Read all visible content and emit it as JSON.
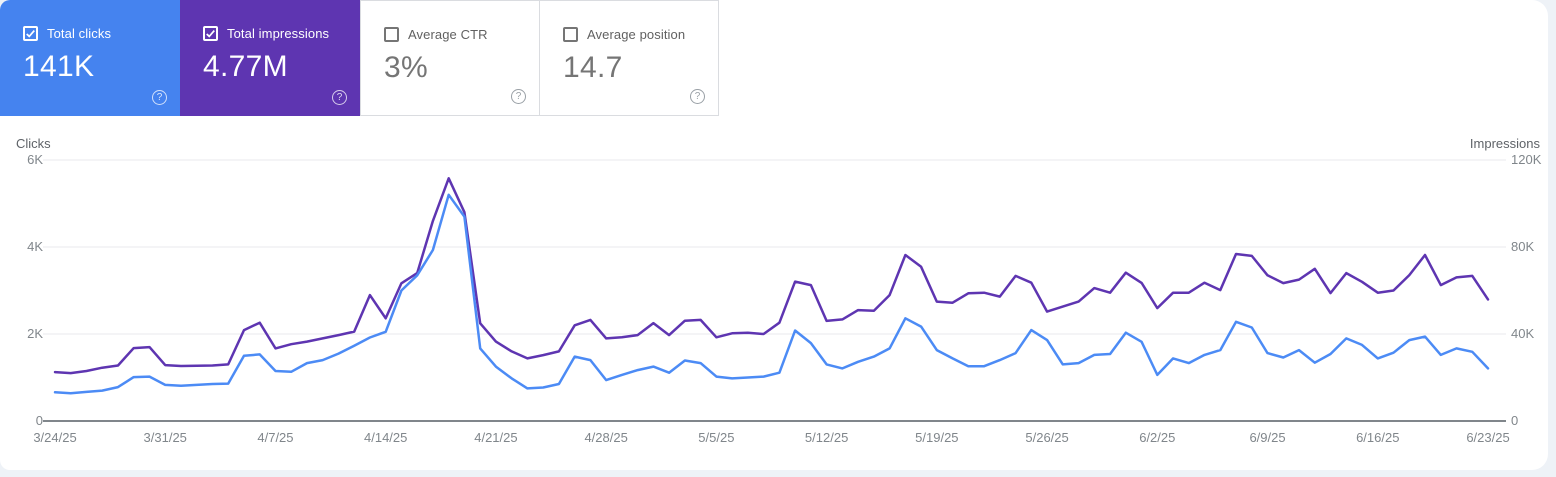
{
  "icons": {
    "help": "?"
  },
  "cards": [
    {
      "label": "Total clicks",
      "value": "141K",
      "checked": true,
      "bg": "#4583ef"
    },
    {
      "label": "Total impressions",
      "value": "4.77M",
      "checked": true,
      "bg": "#5e35b1"
    },
    {
      "label": "Average CTR",
      "value": "3%",
      "checked": false,
      "bg": "#ffffff"
    },
    {
      "label": "Average position",
      "value": "14.7",
      "checked": false,
      "bg": "#ffffff"
    }
  ],
  "chart_data": {
    "type": "line",
    "grid": "horizontal",
    "left_axis": {
      "title": "Clicks",
      "range": [
        0,
        6000
      ],
      "ticks": [
        {
          "label": "6K",
          "value": 6000
        },
        {
          "label": "4K",
          "value": 4000
        },
        {
          "label": "2K",
          "value": 2000
        },
        {
          "label": "0",
          "value": 0
        }
      ]
    },
    "right_axis": {
      "title": "Impressions",
      "range": [
        0,
        120000
      ],
      "ticks": [
        {
          "label": "120K",
          "value": 120000
        },
        {
          "label": "80K",
          "value": 80000
        },
        {
          "label": "40K",
          "value": 40000
        },
        {
          "label": "0",
          "value": 0
        }
      ]
    },
    "x_tick_labels": [
      "3/24/25",
      "3/31/25",
      "4/7/25",
      "4/14/25",
      "4/21/25",
      "4/28/25",
      "5/5/25",
      "5/12/25",
      "5/19/25",
      "5/26/25",
      "6/2/25",
      "6/9/25",
      "6/16/25",
      "6/23/25"
    ],
    "dates": [
      "3/24/25",
      "3/25/25",
      "3/26/25",
      "3/27/25",
      "3/28/25",
      "3/29/25",
      "3/30/25",
      "3/31/25",
      "4/1/25",
      "4/2/25",
      "4/3/25",
      "4/4/25",
      "4/5/25",
      "4/6/25",
      "4/7/25",
      "4/8/25",
      "4/9/25",
      "4/10/25",
      "4/11/25",
      "4/12/25",
      "4/13/25",
      "4/14/25",
      "4/15/25",
      "4/16/25",
      "4/17/25",
      "4/18/25",
      "4/19/25",
      "4/20/25",
      "4/21/25",
      "4/22/25",
      "4/23/25",
      "4/24/25",
      "4/25/25",
      "4/26/25",
      "4/27/25",
      "4/28/25",
      "4/29/25",
      "4/30/25",
      "5/1/25",
      "5/2/25",
      "5/3/25",
      "5/4/25",
      "5/5/25",
      "5/6/25",
      "5/7/25",
      "5/8/25",
      "5/9/25",
      "5/10/25",
      "5/11/25",
      "5/12/25",
      "5/13/25",
      "5/14/25",
      "5/15/25",
      "5/16/25",
      "5/17/25",
      "5/18/25",
      "5/19/25",
      "5/20/25",
      "5/21/25",
      "5/22/25",
      "5/23/25",
      "5/24/25",
      "5/25/25",
      "5/26/25",
      "5/27/25",
      "5/28/25",
      "5/29/25",
      "5/30/25",
      "5/31/25",
      "6/1/25",
      "6/2/25",
      "6/3/25",
      "6/4/25",
      "6/5/25",
      "6/6/25",
      "6/7/25",
      "6/8/25",
      "6/9/25",
      "6/10/25",
      "6/11/25",
      "6/12/25",
      "6/13/25",
      "6/14/25",
      "6/15/25",
      "6/16/25",
      "6/17/25",
      "6/18/25",
      "6/19/25",
      "6/20/25",
      "6/21/25",
      "6/22/25",
      "6/23/25"
    ],
    "series": [
      {
        "id": "clicks",
        "name": "Total clicks",
        "axis": "left",
        "color": "#4c8bf5",
        "values": [
          660,
          640,
          670,
          700,
          780,
          1010,
          1020,
          830,
          810,
          830,
          850,
          860,
          1500,
          1530,
          1150,
          1130,
          1330,
          1400,
          1550,
          1730,
          1920,
          2050,
          3000,
          3350,
          3930,
          5200,
          4700,
          1670,
          1250,
          980,
          750,
          770,
          850,
          1480,
          1400,
          940,
          1060,
          1170,
          1250,
          1110,
          1390,
          1330,
          1020,
          980,
          1000,
          1020,
          1110,
          2080,
          1790,
          1300,
          1210,
          1360,
          1480,
          1670,
          2360,
          2170,
          1630,
          1440,
          1260,
          1260,
          1400,
          1560,
          2090,
          1860,
          1300,
          1330,
          1520,
          1540,
          2030,
          1820,
          1060,
          1440,
          1330,
          1520,
          1630,
          2280,
          2150,
          1560,
          1460,
          1630,
          1340,
          1540,
          1900,
          1750,
          1440,
          1570,
          1860,
          1940,
          1520,
          1670,
          1590,
          1210
        ]
      },
      {
        "id": "impressions",
        "name": "Total impressions",
        "axis": "right",
        "color": "#5e35b1",
        "values": [
          22500,
          22000,
          23000,
          24500,
          25500,
          33500,
          34000,
          25700,
          25300,
          25400,
          25500,
          26000,
          41800,
          45200,
          33400,
          35300,
          36500,
          38000,
          39500,
          41100,
          57900,
          47200,
          63300,
          68000,
          92000,
          111600,
          96000,
          44900,
          36500,
          32000,
          28800,
          30300,
          32000,
          44000,
          46500,
          38000,
          38500,
          39500,
          45000,
          39500,
          46100,
          46500,
          38500,
          40300,
          40600,
          40000,
          45200,
          64100,
          62500,
          46000,
          46700,
          51000,
          50700,
          57900,
          76300,
          70900,
          54900,
          54400,
          58700,
          59000,
          57200,
          66700,
          63600,
          50300,
          52600,
          54900,
          61100,
          59000,
          68200,
          63500,
          51900,
          59000,
          59000,
          63600,
          60200,
          76800,
          75900,
          67000,
          63400,
          65000,
          70000,
          58800,
          68000,
          64000,
          59000,
          60000,
          67100,
          76300,
          62500,
          66000,
          66700,
          55900
        ]
      }
    ]
  }
}
